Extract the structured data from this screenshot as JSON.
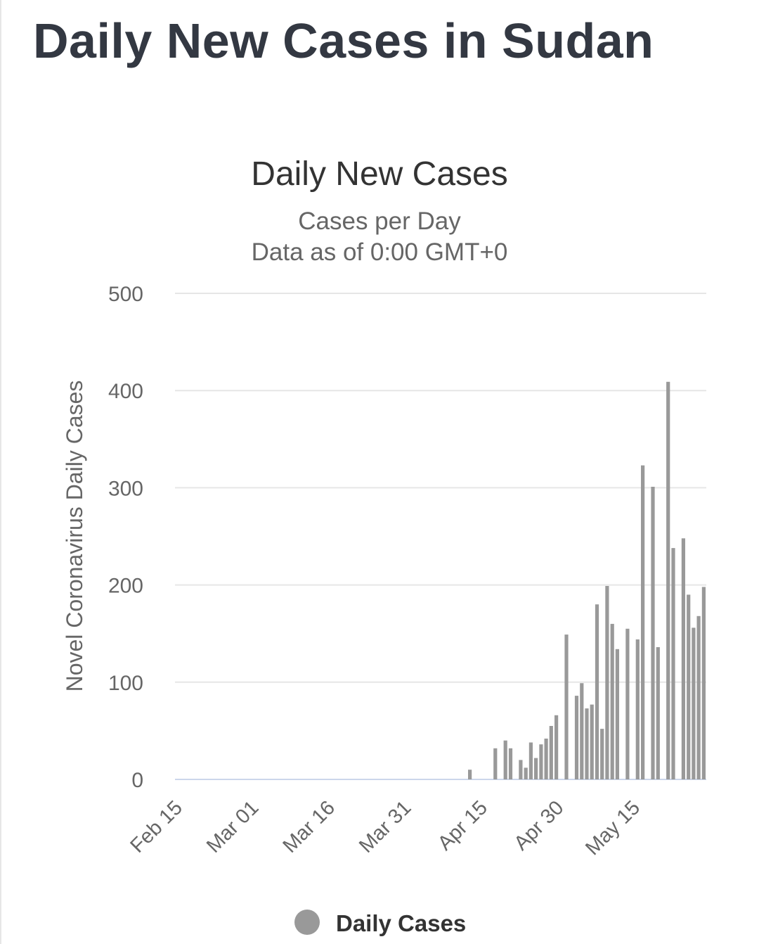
{
  "page": {
    "title": "Daily New Cases in Sudan"
  },
  "chart_data": {
    "type": "bar",
    "title": "Daily New Cases",
    "subtitle": [
      "Cases per Day",
      "Data as of 0:00 GMT+0"
    ],
    "ylabel": "Novel Coronavirus Daily Cases",
    "xlabel": "",
    "ylim": [
      0,
      500
    ],
    "yticks": [
      0,
      100,
      200,
      300,
      400,
      500
    ],
    "x_tick_labels": [
      {
        "label": "Feb 15",
        "day": 0
      },
      {
        "label": "Mar 01",
        "day": 15
      },
      {
        "label": "Mar 16",
        "day": 30
      },
      {
        "label": "Mar 31",
        "day": 45
      },
      {
        "label": "Apr 15",
        "day": 60
      },
      {
        "label": "Apr 30",
        "day": 75
      },
      {
        "label": "May 15",
        "day": 90
      }
    ],
    "grid": true,
    "legend": {
      "position": "bottom",
      "entries": [
        "Daily Cases"
      ]
    },
    "series": [
      {
        "name": "Daily Cases",
        "color": "#999999",
        "points": [
          {
            "day": 58,
            "date": "Apr 13",
            "value": 10
          },
          {
            "day": 63,
            "date": "Apr 18",
            "value": 32
          },
          {
            "day": 65,
            "date": "Apr 20",
            "value": 40
          },
          {
            "day": 66,
            "date": "Apr 21",
            "value": 32
          },
          {
            "day": 67,
            "date": "Apr 22",
            "value": 0
          },
          {
            "day": 68,
            "date": "Apr 23",
            "value": 20
          },
          {
            "day": 69,
            "date": "Apr 24",
            "value": 12
          },
          {
            "day": 70,
            "date": "Apr 25",
            "value": 38
          },
          {
            "day": 71,
            "date": "Apr 26",
            "value": 22
          },
          {
            "day": 72,
            "date": "Apr 27",
            "value": 36
          },
          {
            "day": 73,
            "date": "Apr 28",
            "value": 42
          },
          {
            "day": 74,
            "date": "Apr 29",
            "value": 55
          },
          {
            "day": 75,
            "date": "Apr 30",
            "value": 66
          },
          {
            "day": 76,
            "date": "May 01",
            "value": 0
          },
          {
            "day": 77,
            "date": "May 02",
            "value": 149
          },
          {
            "day": 78,
            "date": "May 03",
            "value": 0
          },
          {
            "day": 79,
            "date": "May 04",
            "value": 86
          },
          {
            "day": 80,
            "date": "May 05",
            "value": 99
          },
          {
            "day": 81,
            "date": "May 06",
            "value": 73
          },
          {
            "day": 82,
            "date": "May 07",
            "value": 77
          },
          {
            "day": 83,
            "date": "May 08",
            "value": 180
          },
          {
            "day": 84,
            "date": "May 09",
            "value": 52
          },
          {
            "day": 85,
            "date": "May 10",
            "value": 199
          },
          {
            "day": 86,
            "date": "May 11",
            "value": 160
          },
          {
            "day": 87,
            "date": "May 12",
            "value": 134
          },
          {
            "day": 88,
            "date": "May 13",
            "value": 0
          },
          {
            "day": 89,
            "date": "May 14",
            "value": 155
          },
          {
            "day": 90,
            "date": "May 15",
            "value": 0
          },
          {
            "day": 91,
            "date": "May 16",
            "value": 144
          },
          {
            "day": 92,
            "date": "May 17",
            "value": 323
          },
          {
            "day": 93,
            "date": "May 18",
            "value": 0
          },
          {
            "day": 94,
            "date": "May 19",
            "value": 301
          },
          {
            "day": 95,
            "date": "May 20",
            "value": 136
          },
          {
            "day": 96,
            "date": "May 21",
            "value": 0
          },
          {
            "day": 97,
            "date": "May 22",
            "value": 409
          },
          {
            "day": 98,
            "date": "May 23",
            "value": 238
          },
          {
            "day": 99,
            "date": "May 24",
            "value": 0
          },
          {
            "day": 100,
            "date": "May 25",
            "value": 248
          },
          {
            "day": 101,
            "date": "May 26",
            "value": 190
          },
          {
            "day": 102,
            "date": "May 27",
            "value": 156
          },
          {
            "day": 103,
            "date": "May 28",
            "value": 168
          },
          {
            "day": 104,
            "date": "May 29",
            "value": 198
          }
        ]
      }
    ]
  }
}
